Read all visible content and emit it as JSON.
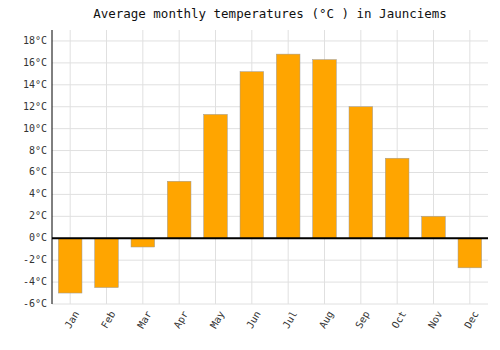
{
  "chart_data": {
    "type": "bar",
    "title": "Average monthly temperatures (°C ) in Jaunciems",
    "categories": [
      "Jan",
      "Feb",
      "Mar",
      "Apr",
      "May",
      "Jun",
      "Jul",
      "Aug",
      "Sep",
      "Oct",
      "Nov",
      "Dec"
    ],
    "values": [
      -5.0,
      -4.5,
      -0.8,
      5.2,
      11.3,
      15.2,
      16.8,
      16.3,
      12.0,
      7.3,
      2.0,
      -2.7
    ],
    "color": "#FFA500",
    "ylim": [
      -6,
      19
    ],
    "yticks": [
      {
        "value": -6,
        "label": "-6°C"
      },
      {
        "value": -4,
        "label": "-4°C"
      },
      {
        "value": -2,
        "label": "-2°C"
      },
      {
        "value": 0,
        "label": "0°C"
      },
      {
        "value": 2,
        "label": "2°C"
      },
      {
        "value": 4,
        "label": "4°C"
      },
      {
        "value": 6,
        "label": "6°C"
      },
      {
        "value": 8,
        "label": "8°C"
      },
      {
        "value": 10,
        "label": "10°C"
      },
      {
        "value": 12,
        "label": "12°C"
      },
      {
        "value": 14,
        "label": "14°C"
      },
      {
        "value": 16,
        "label": "16°C"
      },
      {
        "value": 18,
        "label": "18°C"
      }
    ],
    "grid": true
  }
}
